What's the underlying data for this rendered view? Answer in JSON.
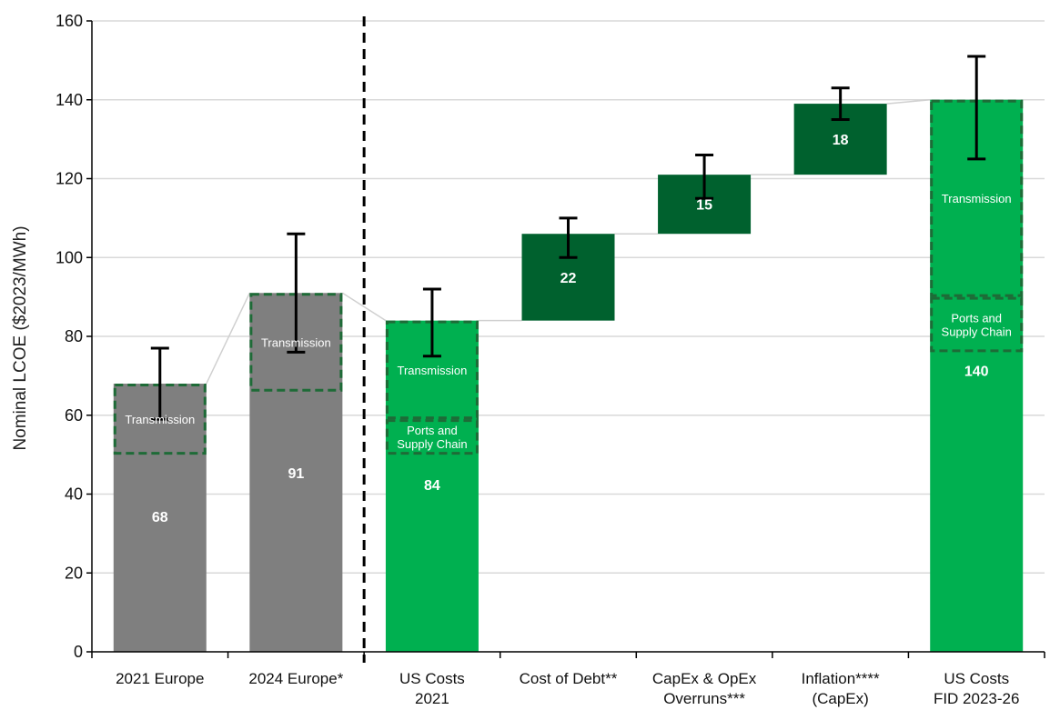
{
  "chart_data": {
    "type": "bar",
    "subtype": "waterfall",
    "title": "",
    "ylabel": "Nominal LCOE ($2023/MWh)",
    "xlabel": "",
    "ylim": [
      0,
      160
    ],
    "yticks": [
      0,
      20,
      40,
      60,
      80,
      100,
      120,
      140,
      160
    ],
    "grid": true,
    "colors": {
      "europe": "#7f7f7f",
      "us_total": "#00b050",
      "increment": "#00612e",
      "box_border": "#1e6b37",
      "error_bar": "#000000",
      "connector": "#d0d0d0",
      "divider": "#000000"
    },
    "categories": [
      [
        "2021 Europe"
      ],
      [
        "2024 Europe*"
      ],
      [
        "US Costs",
        "2021"
      ],
      [
        "Cost of Debt**"
      ],
      [
        "CapEx & OpEx",
        "Overruns***"
      ],
      [
        "Inflation****",
        "(CapEx)"
      ],
      [
        "US Costs",
        "FID 2023-26"
      ]
    ],
    "bars": [
      {
        "kind": "total",
        "group": "europe",
        "base": 0,
        "value": 68,
        "label": "68",
        "error": [
          59,
          77
        ],
        "boxes": [
          {
            "from": 50,
            "to": 68,
            "label": [
              "Transmission"
            ]
          }
        ]
      },
      {
        "kind": "total",
        "group": "europe",
        "base": 0,
        "value": 91,
        "label": "91",
        "error": [
          76,
          106
        ],
        "boxes": [
          {
            "from": 66,
            "to": 91,
            "label": [
              "Transmission"
            ]
          }
        ]
      },
      {
        "kind": "total",
        "group": "us_total",
        "base": 0,
        "value": 84,
        "label": "84",
        "error": [
          75,
          92
        ],
        "boxes": [
          {
            "from": 59,
            "to": 84,
            "label": [
              "Transmission"
            ]
          },
          {
            "from": 50,
            "to": 59,
            "label": [
              "Ports and",
              "Supply Chain"
            ]
          }
        ]
      },
      {
        "kind": "increment",
        "group": "increment",
        "base": 84,
        "value": 22,
        "label": "22",
        "error": [
          100,
          110
        ],
        "boxes": []
      },
      {
        "kind": "increment",
        "group": "increment",
        "base": 106,
        "value": 15,
        "label": "15",
        "error": [
          115,
          126
        ],
        "boxes": []
      },
      {
        "kind": "increment",
        "group": "increment",
        "base": 121,
        "value": 18,
        "label": "18",
        "error": [
          135,
          143
        ],
        "boxes": []
      },
      {
        "kind": "total",
        "group": "us_total",
        "base": 0,
        "value": 140,
        "label": "140",
        "error": [
          125,
          151
        ],
        "boxes": [
          {
            "from": 90,
            "to": 140,
            "label": [
              "Transmission"
            ]
          },
          {
            "from": 76,
            "to": 90,
            "label": [
              "Ports and",
              "Supply Chain"
            ]
          }
        ]
      }
    ],
    "divider_after_category": 1
  }
}
